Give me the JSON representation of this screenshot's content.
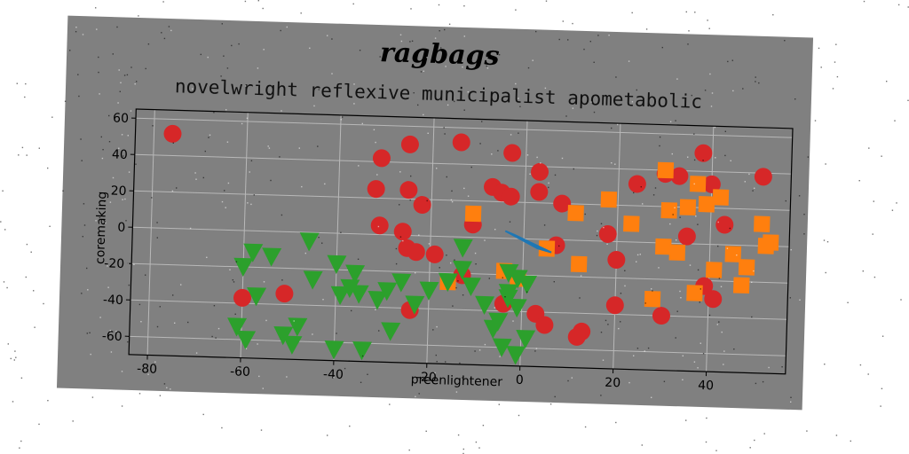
{
  "chart_data": {
    "type": "scatter",
    "title": "ragbags",
    "subtitle": "novelwright reflexive municipalist apometabolic",
    "xlabel": "preenlightener",
    "ylabel": "coremaking",
    "xlim": [
      -84,
      57
    ],
    "ylim": [
      -70,
      65
    ],
    "xticks": [
      -80,
      -60,
      -40,
      -20,
      0,
      20,
      40
    ],
    "yticks": [
      -60,
      -40,
      -20,
      0,
      20,
      40,
      60
    ],
    "grid": true,
    "colors": {
      "red": "#d62728",
      "orange": "#ff7f0e",
      "green": "#2ca02c",
      "blue": "#1f77b4",
      "panel": "#808080"
    },
    "series": [
      {
        "marker": "circle",
        "color": "#d62728",
        "points": [
          [
            -76,
            52
          ],
          [
            -25,
            50
          ],
          [
            -14,
            52
          ],
          [
            -3,
            47
          ],
          [
            3,
            37
          ],
          [
            -31,
            42
          ],
          [
            -32,
            25
          ],
          [
            -25,
            25
          ],
          [
            -22,
            17
          ],
          [
            -7,
            28
          ],
          [
            -5,
            25
          ],
          [
            -3,
            23
          ],
          [
            3,
            26
          ],
          [
            8,
            20
          ],
          [
            -31,
            5
          ],
          [
            -26,
            2
          ],
          [
            -25,
            -7
          ],
          [
            -23,
            -9
          ],
          [
            -19,
            -10
          ],
          [
            -13,
            -21
          ],
          [
            -11,
            7
          ],
          [
            7,
            -3
          ],
          [
            18,
            4
          ],
          [
            20,
            -10
          ],
          [
            24,
            32
          ],
          [
            30,
            38
          ],
          [
            33,
            37
          ],
          [
            40,
            33
          ],
          [
            38,
            50
          ],
          [
            51,
            38
          ],
          [
            43,
            11
          ],
          [
            35,
            4
          ],
          [
            39,
            -23
          ],
          [
            41,
            -30
          ],
          [
            30,
            -40
          ],
          [
            20,
            -35
          ],
          [
            13,
            -50
          ],
          [
            12,
            -53
          ],
          [
            3,
            -41
          ],
          [
            -24,
            -41
          ],
          [
            -51,
            -34
          ],
          [
            -60,
            -37
          ],
          [
            5,
            -47
          ],
          [
            -4,
            -36
          ]
        ]
      },
      {
        "marker": "square",
        "color": "#ff7f0e",
        "points": [
          [
            11,
            15
          ],
          [
            18,
            23
          ],
          [
            23,
            10
          ],
          [
            30,
            -2
          ],
          [
            33,
            -5
          ],
          [
            31,
            18
          ],
          [
            35,
            20
          ],
          [
            37,
            33
          ],
          [
            39,
            22
          ],
          [
            42,
            26
          ],
          [
            45,
            -5
          ],
          [
            48,
            -12
          ],
          [
            51,
            12
          ],
          [
            53,
            2
          ],
          [
            47,
            -22
          ],
          [
            41,
            -14
          ],
          [
            37,
            -27
          ],
          [
            28,
            -31
          ],
          [
            12,
            -13
          ],
          [
            5,
            -5
          ],
          [
            -16,
            -25
          ],
          [
            -11,
            13
          ],
          [
            -1,
            -22
          ],
          [
            -4,
            -18
          ],
          [
            30,
            40
          ],
          [
            52,
            0
          ]
        ]
      },
      {
        "marker": "triangle",
        "color": "#2ca02c",
        "points": [
          [
            -58,
            -12
          ],
          [
            -54,
            -14
          ],
          [
            -46,
            -5
          ],
          [
            -40,
            -17
          ],
          [
            -36,
            -22
          ],
          [
            -37,
            -30
          ],
          [
            -35,
            -33
          ],
          [
            -31,
            -36
          ],
          [
            -29,
            -31
          ],
          [
            -26,
            -26
          ],
          [
            -23,
            -38
          ],
          [
            -20,
            -30
          ],
          [
            -16,
            -25
          ],
          [
            -13,
            -6
          ],
          [
            -13,
            -18
          ],
          [
            -11,
            -27
          ],
          [
            -8,
            -37
          ],
          [
            -5,
            -46
          ],
          [
            -3,
            -19
          ],
          [
            -1,
            -22
          ],
          [
            -3,
            -33
          ],
          [
            -1,
            -38
          ],
          [
            -60,
            -20
          ],
          [
            -57,
            -36
          ],
          [
            -61,
            -53
          ],
          [
            -59,
            -60
          ],
          [
            -51,
            -57
          ],
          [
            -48,
            -52
          ],
          [
            -49,
            -62
          ],
          [
            -40,
            -64
          ],
          [
            -34,
            -64
          ],
          [
            -28,
            -53
          ],
          [
            -4,
            -60
          ],
          [
            -1,
            -64
          ],
          [
            1,
            -55
          ],
          [
            -6,
            -50
          ],
          [
            -39,
            -34
          ],
          [
            -45,
            -26
          ],
          [
            -3,
            -30
          ],
          [
            1,
            -25
          ]
        ]
      },
      {
        "marker": "polygon",
        "color": "#1f77b4",
        "points": [
          [
            -4,
            4
          ],
          [
            3,
            -5
          ],
          [
            6,
            -7
          ],
          [
            -2,
            2
          ]
        ]
      }
    ]
  }
}
